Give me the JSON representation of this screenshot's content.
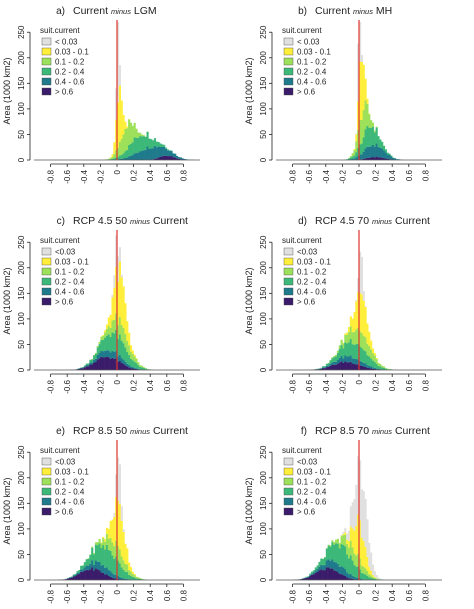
{
  "colors": {
    "bins": [
      "#e0e0e0",
      "#ffef3a",
      "#9de05a",
      "#3cb878",
      "#1f7a8c",
      "#3b1c6b"
    ],
    "refline": "#e0322d",
    "axis": "#222222"
  },
  "chart_data": [
    {
      "type": "histogram-stacked",
      "panel_letter": "a)",
      "title_prefix": "Current",
      "title_minus": "minus",
      "title_suffix": "LGM",
      "ylabel": "Area (1000 km2)",
      "xticks": [
        "-0.8",
        "-0.6",
        "-0.4",
        "-0.2",
        "0",
        "0.2",
        "0.4",
        "0.6",
        "0.8"
      ],
      "xlim": [
        -1.0,
        1.0
      ],
      "yticks": [
        "0",
        "50",
        "100",
        "150",
        "200",
        "250"
      ],
      "ylim": [
        0,
        270
      ],
      "legend_title": "suit.current",
      "legend": [
        "< 0.03",
        "0.03 - 0.1",
        "0.1 - 0.2",
        "0.2 - 0.4",
        "0.4 - 0.6",
        "> 0.6"
      ],
      "vline": 0,
      "peaks": [
        {
          "mu": 0.01,
          "sigma": 0.012,
          "amp": 265
        },
        {
          "mu": 0.03,
          "sigma": 0.035,
          "amp": 110
        },
        {
          "mu": 0.12,
          "sigma": 0.08,
          "amp": 48
        },
        {
          "mu": 0.28,
          "sigma": 0.14,
          "amp": 32
        },
        {
          "mu": 0.42,
          "sigma": 0.17,
          "amp": 25
        },
        {
          "mu": 0.6,
          "sigma": 0.09,
          "amp": 9
        }
      ]
    },
    {
      "type": "histogram-stacked",
      "panel_letter": "b)",
      "title_prefix": "Current",
      "title_minus": "minus",
      "title_suffix": "MH",
      "ylabel": "Area (1000 km2)",
      "xticks": [
        "-0.8",
        "-0.6",
        "-0.4",
        "-0.2",
        "0",
        "0.2",
        "0.4",
        "0.6",
        "0.8"
      ],
      "xlim": [
        -1.0,
        1.0
      ],
      "yticks": [
        "0",
        "50",
        "100",
        "150",
        "200",
        "250"
      ],
      "ylim": [
        0,
        270
      ],
      "legend_title": "suit.current",
      "legend": [
        "< 0.03",
        "0.03 - 0.1",
        "0.1 - 0.2",
        "0.2 - 0.4",
        "0.4 - 0.6",
        "> 0.6"
      ],
      "vline": 0,
      "peaks": [
        {
          "mu": 0.005,
          "sigma": 0.012,
          "amp": 255
        },
        {
          "mu": 0.03,
          "sigma": 0.03,
          "amp": 130
        },
        {
          "mu": 0.05,
          "sigma": 0.06,
          "amp": 55
        },
        {
          "mu": 0.13,
          "sigma": 0.1,
          "amp": 38
        },
        {
          "mu": 0.18,
          "sigma": 0.12,
          "amp": 24
        },
        {
          "mu": 0.2,
          "sigma": 0.1,
          "amp": 6
        }
      ]
    },
    {
      "type": "histogram-stacked",
      "panel_letter": "c)",
      "title_prefix": "RCP 4.5 50",
      "title_minus": "minus",
      "title_suffix": "Current",
      "ylabel": "Area (1000 km2)",
      "xticks": [
        "-0.8",
        "-0.6",
        "-0.4",
        "-0.2",
        "0",
        "0.2",
        "0.4",
        "0.6",
        "0.8"
      ],
      "xlim": [
        -1.0,
        1.0
      ],
      "yticks": [
        "0",
        "50",
        "100",
        "150",
        "200",
        "250"
      ],
      "ylim": [
        0,
        270
      ],
      "legend_title": "suit.current",
      "legend": [
        "<0.03",
        "0.03 - 0.1",
        "0.1 - 0.2",
        "0.2 - 0.4",
        "0.4 - 0.6",
        "> 0.6"
      ],
      "vline": 0,
      "peaks": [
        {
          "mu": 0.0,
          "sigma": 0.025,
          "amp": 60
        },
        {
          "mu": 0.03,
          "sigma": 0.07,
          "amp": 95
        },
        {
          "mu": 0.03,
          "sigma": 0.12,
          "amp": 30
        },
        {
          "mu": -0.02,
          "sigma": 0.15,
          "amp": 37
        },
        {
          "mu": -0.08,
          "sigma": 0.15,
          "amp": 14
        },
        {
          "mu": -0.12,
          "sigma": 0.15,
          "amp": 26
        }
      ]
    },
    {
      "type": "histogram-stacked",
      "panel_letter": "d)",
      "title_prefix": "RCP 4.5 70",
      "title_minus": "minus",
      "title_suffix": "Current",
      "ylabel": "Area (1000 km2)",
      "xticks": [
        "-0.8",
        "-0.6",
        "-0.4",
        "-0.2",
        "0",
        "0.2",
        "0.4",
        "0.6",
        "0.8"
      ],
      "xlim": [
        -1.0,
        1.0
      ],
      "yticks": [
        "0",
        "50",
        "100",
        "150",
        "200",
        "250"
      ],
      "ylim": [
        0,
        270
      ],
      "legend_title": "suit.current",
      "legend": [
        "<0.03",
        "0.03 - 0.1",
        "0.1 - 0.2",
        "0.2 - 0.4",
        "0.4 - 0.6",
        "> 0.6"
      ],
      "vline": 0,
      "peaks": [
        {
          "mu": 0.02,
          "sigma": 0.02,
          "amp": 95
        },
        {
          "mu": 0.02,
          "sigma": 0.07,
          "amp": 80
        },
        {
          "mu": 0.0,
          "sigma": 0.13,
          "amp": 32
        },
        {
          "mu": -0.05,
          "sigma": 0.16,
          "amp": 32
        },
        {
          "mu": -0.1,
          "sigma": 0.16,
          "amp": 12
        },
        {
          "mu": -0.15,
          "sigma": 0.16,
          "amp": 16
        }
      ]
    },
    {
      "type": "histogram-stacked",
      "panel_letter": "e)",
      "title_prefix": "RCP 8.5 50",
      "title_minus": "minus",
      "title_suffix": "Current",
      "ylabel": "Area (1000 km2)",
      "xticks": [
        "-0.8",
        "-0.6",
        "-0.4",
        "-0.2",
        "0",
        "0.2",
        "0.4",
        "0.6",
        "0.8"
      ],
      "xlim": [
        -1.0,
        1.0
      ],
      "yticks": [
        "0",
        "50",
        "100",
        "150",
        "200",
        "250"
      ],
      "ylim": [
        0,
        270
      ],
      "legend_title": "suit.current",
      "legend": [
        "<0.03",
        "0.03 - 0.1",
        "0.1 - 0.2",
        "0.2 - 0.4",
        "0.4 - 0.6",
        "> 0.6"
      ],
      "vline": 0,
      "peaks": [
        {
          "mu": 0.02,
          "sigma": 0.025,
          "amp": 85
        },
        {
          "mu": 0.02,
          "sigma": 0.07,
          "amp": 85
        },
        {
          "mu": -0.02,
          "sigma": 0.12,
          "amp": 28
        },
        {
          "mu": -0.12,
          "sigma": 0.16,
          "amp": 40
        },
        {
          "mu": -0.2,
          "sigma": 0.15,
          "amp": 15
        },
        {
          "mu": -0.3,
          "sigma": 0.14,
          "amp": 22
        }
      ]
    },
    {
      "type": "histogram-stacked",
      "panel_letter": "f)",
      "title_prefix": "RCP 8.5 70",
      "title_minus": "minus",
      "title_suffix": "Current",
      "ylabel": "Area (1000 km2)",
      "xticks": [
        "-0.8",
        "-0.6",
        "-0.4",
        "-0.2",
        "0",
        "0.2",
        "0.4",
        "0.6",
        "0.8"
      ],
      "xlim": [
        -1.0,
        1.0
      ],
      "yticks": [
        "0",
        "50",
        "100",
        "150",
        "200",
        "250"
      ],
      "ylim": [
        0,
        270
      ],
      "legend_title": "suit.current",
      "legend": [
        "<0.03",
        "0.03 - 0.1",
        "0.1 - 0.2",
        "0.2 - 0.4",
        "0.4 - 0.6",
        "> 0.6"
      ],
      "vline": 0,
      "peaks": [
        {
          "mu": 0.02,
          "sigma": 0.08,
          "amp": 110
        },
        {
          "mu": 0.0,
          "sigma": 0.07,
          "amp": 70
        },
        {
          "mu": -0.08,
          "sigma": 0.12,
          "amp": 26
        },
        {
          "mu": -0.2,
          "sigma": 0.16,
          "amp": 40
        },
        {
          "mu": -0.28,
          "sigma": 0.15,
          "amp": 16
        },
        {
          "mu": -0.38,
          "sigma": 0.14,
          "amp": 22
        }
      ]
    }
  ]
}
